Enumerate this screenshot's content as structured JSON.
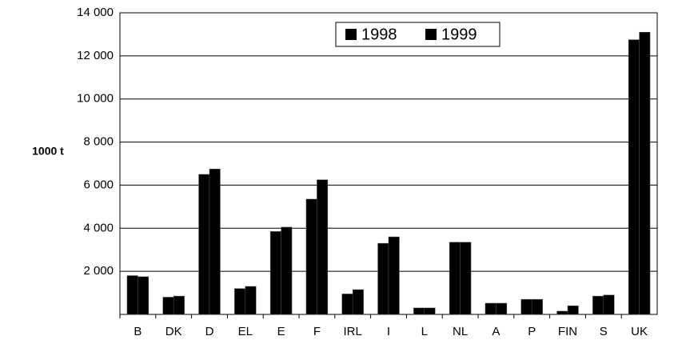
{
  "chart_data": {
    "type": "bar",
    "ylabel": "1000 t",
    "categories": [
      "B",
      "DK",
      "D",
      "EL",
      "E",
      "F",
      "IRL",
      "I",
      "L",
      "NL",
      "A",
      "P",
      "FIN",
      "S",
      "UK"
    ],
    "series": [
      {
        "name": "1998",
        "color": "#000000",
        "values": [
          1800,
          800,
          6500,
          1200,
          3850,
          5350,
          950,
          3300,
          300,
          3350,
          520,
          700,
          150,
          850,
          12750
        ]
      },
      {
        "name": "1999",
        "color": "#000000",
        "values": [
          1750,
          850,
          6750,
          1300,
          4050,
          6250,
          1150,
          3600,
          300,
          3350,
          520,
          700,
          400,
          900,
          13100
        ]
      }
    ],
    "ylim": [
      0,
      14000
    ],
    "yticks": [
      {
        "value": 2000,
        "label": "2 000"
      },
      {
        "value": 4000,
        "label": "4 000"
      },
      {
        "value": 6000,
        "label": "6 000"
      },
      {
        "value": 8000,
        "label": "8 000"
      },
      {
        "value": 10000,
        "label": "10 000"
      },
      {
        "value": 12000,
        "label": "12 000"
      },
      {
        "value": 14000,
        "label": "14 000"
      }
    ],
    "grid": true,
    "legend": "top"
  }
}
